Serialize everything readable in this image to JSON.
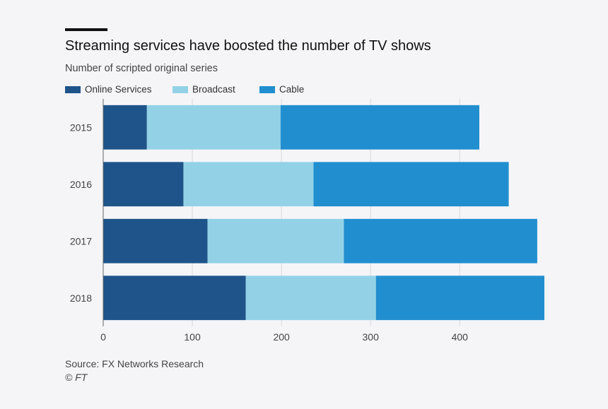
{
  "header": {
    "title": "Streaming services have boosted the number of TV shows",
    "subtitle": "Number of scripted original series"
  },
  "legend": {
    "items": [
      {
        "label": "Online Services",
        "color": "#1f548a"
      },
      {
        "label": "Broadcast",
        "color": "#93d2e6"
      },
      {
        "label": "Cable",
        "color": "#218fcf"
      }
    ]
  },
  "footer": {
    "source": "Source: FX Networks Research",
    "credit": "© FT"
  },
  "chart_data": {
    "type": "bar",
    "orientation": "horizontal",
    "stacked": true,
    "title": "Streaming services have boosted the number of TV shows",
    "subtitle": "Number of scripted original series",
    "categories": [
      "2015",
      "2016",
      "2017",
      "2018"
    ],
    "series": [
      {
        "name": "Online Services",
        "color": "#1f548a",
        "values": [
          49,
          90,
          117,
          160
        ]
      },
      {
        "name": "Broadcast",
        "color": "#93d2e6",
        "values": [
          150,
          146,
          153,
          146
        ]
      },
      {
        "name": "Cable",
        "color": "#218fcf",
        "values": [
          223,
          219,
          217,
          189
        ]
      }
    ],
    "xlim": [
      0,
      495
    ],
    "xticks": [
      0,
      100,
      200,
      300,
      400
    ],
    "xlabel": "",
    "ylabel": "",
    "grid": "vertical",
    "legend_position": "top-left"
  }
}
